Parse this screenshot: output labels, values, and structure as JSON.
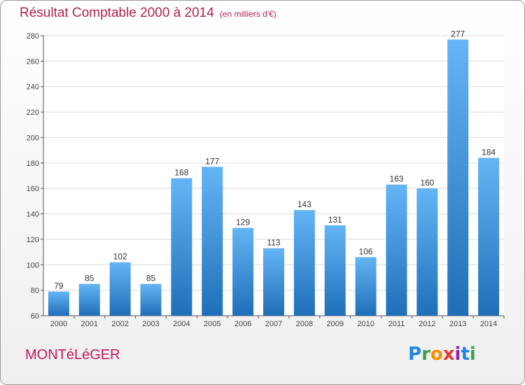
{
  "title": "Résultat Comptable 2000 à 2014",
  "subtitle": "(en milliers d'€)",
  "commune": "MONTéLéGER",
  "logo": {
    "text": "Proxiti",
    "letters": [
      "P",
      "r",
      "o",
      "x",
      "i",
      "t",
      "i"
    ],
    "colors": [
      "#1e88e5",
      "#43a047",
      "#fb8c00",
      "#e53935",
      "#8e24aa",
      "#1e88e5",
      "#43a047"
    ]
  },
  "colors": {
    "bar_light": "#64b5f6",
    "bar_dark": "#1e6fb8",
    "title": "#b2234e"
  },
  "chart_data": {
    "type": "bar",
    "title": "Résultat Comptable 2000 à 2014",
    "subtitle": "(en milliers d'€)",
    "categories": [
      "2000",
      "2001",
      "2002",
      "2003",
      "2004",
      "2005",
      "2006",
      "2007",
      "2008",
      "2009",
      "2010",
      "2011",
      "2012",
      "2013",
      "2014"
    ],
    "values": [
      79,
      85,
      102,
      85,
      168,
      177,
      129,
      113,
      143,
      131,
      106,
      163,
      160,
      277,
      184
    ],
    "ylim": [
      60,
      280
    ],
    "yticks": [
      60,
      80,
      100,
      120,
      140,
      160,
      180,
      200,
      220,
      240,
      260,
      280
    ],
    "grid": true,
    "xlabel": "",
    "ylabel": ""
  }
}
